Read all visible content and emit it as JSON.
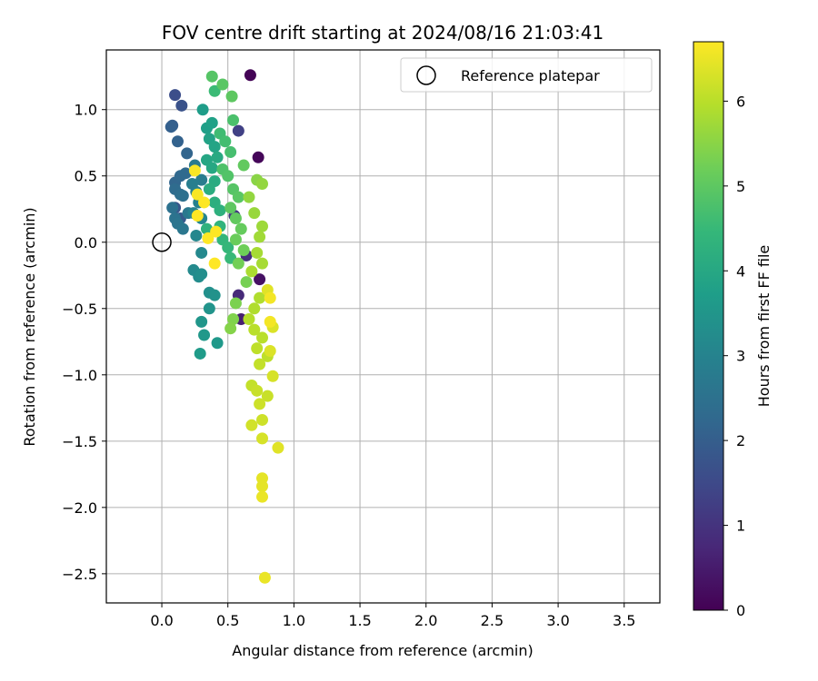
{
  "chart_data": {
    "type": "scatter",
    "title": "FOV centre drift starting at 2024/08/16 21:03:41",
    "xlabel": "Angular distance from reference (arcmin)",
    "ylabel": "Rotation from reference (arcmin)",
    "xlim": [
      -0.42,
      3.77
    ],
    "ylim": [
      -2.72,
      1.45
    ],
    "xticks": [
      0.0,
      0.5,
      1.0,
      1.5,
      2.0,
      2.5,
      3.0,
      3.5
    ],
    "xtick_labels": [
      "0.0",
      "0.5",
      "1.0",
      "1.5",
      "2.0",
      "2.5",
      "3.0",
      "3.5"
    ],
    "yticks": [
      1.0,
      0.5,
      0.0,
      -0.5,
      -1.0,
      -1.5,
      -2.0,
      -2.5
    ],
    "ytick_labels": [
      "1.0",
      "0.5",
      "0.0",
      "−0.5",
      "−1.0",
      "−1.5",
      "−2.0",
      "−2.5"
    ],
    "grid": true,
    "legend_position": "top-right",
    "legend": [
      {
        "label": "Reference platepar",
        "marker": "open-circle"
      }
    ],
    "reference_point": {
      "x": 0.0,
      "y": 0.0
    },
    "colorbar": {
      "label": "Hours from first FF file",
      "colormap": "viridis",
      "range": [
        0,
        6.7
      ],
      "ticks": [
        0,
        1,
        2,
        3,
        4,
        5,
        6
      ],
      "tick_labels": [
        "0",
        "1",
        "2",
        "3",
        "4",
        "5",
        "6"
      ]
    },
    "colormap_stops": [
      "#440154",
      "#482878",
      "#3e4989",
      "#31688e",
      "#26828e",
      "#1f9e89",
      "#35b779",
      "#6ece58",
      "#b5de2b",
      "#fde725"
    ],
    "points": [
      {
        "x": 0.67,
        "y": 1.26,
        "t": 0.05
      },
      {
        "x": 0.73,
        "y": 0.64,
        "t": 0.1
      },
      {
        "x": 0.74,
        "y": -0.28,
        "t": 0.3
      },
      {
        "x": 0.6,
        "y": -0.58,
        "t": 0.6
      },
      {
        "x": 0.58,
        "y": -0.4,
        "t": 0.8
      },
      {
        "x": 0.64,
        "y": -0.1,
        "t": 0.9
      },
      {
        "x": 0.55,
        "y": 0.2,
        "t": 1.1
      },
      {
        "x": 0.58,
        "y": 0.84,
        "t": 1.3
      },
      {
        "x": 0.1,
        "y": 1.11,
        "t": 1.6
      },
      {
        "x": 0.15,
        "y": 1.03,
        "t": 1.7
      },
      {
        "x": 0.1,
        "y": 0.26,
        "t": 1.8
      },
      {
        "x": 0.14,
        "y": 0.18,
        "t": 1.9
      },
      {
        "x": 0.08,
        "y": 0.88,
        "t": 2.0
      },
      {
        "x": 0.07,
        "y": 0.87,
        "t": 2.05
      },
      {
        "x": 0.12,
        "y": 0.76,
        "t": 2.1
      },
      {
        "x": 0.19,
        "y": 0.67,
        "t": 2.15
      },
      {
        "x": 0.1,
        "y": 0.45,
        "t": 2.2
      },
      {
        "x": 0.14,
        "y": 0.5,
        "t": 2.25
      },
      {
        "x": 0.18,
        "y": 0.52,
        "t": 2.3
      },
      {
        "x": 0.1,
        "y": 0.4,
        "t": 2.35
      },
      {
        "x": 0.14,
        "y": 0.36,
        "t": 2.4
      },
      {
        "x": 0.16,
        "y": 0.35,
        "t": 2.45
      },
      {
        "x": 0.08,
        "y": 0.26,
        "t": 2.5
      },
      {
        "x": 0.1,
        "y": 0.18,
        "t": 2.55
      },
      {
        "x": 0.12,
        "y": 0.14,
        "t": 2.6
      },
      {
        "x": 0.16,
        "y": 0.1,
        "t": 2.65
      },
      {
        "x": 0.2,
        "y": 0.22,
        "t": 2.7
      },
      {
        "x": 0.25,
        "y": 0.58,
        "t": 2.75
      },
      {
        "x": 0.3,
        "y": 0.47,
        "t": 2.8
      },
      {
        "x": 0.23,
        "y": 0.44,
        "t": 2.85
      },
      {
        "x": 0.26,
        "y": 0.38,
        "t": 2.9
      },
      {
        "x": 0.28,
        "y": 0.3,
        "t": 2.95
      },
      {
        "x": 0.24,
        "y": 0.22,
        "t": 3.0
      },
      {
        "x": 0.3,
        "y": 0.18,
        "t": 3.05
      },
      {
        "x": 0.26,
        "y": 0.05,
        "t": 3.1
      },
      {
        "x": 0.3,
        "y": -0.08,
        "t": 3.15
      },
      {
        "x": 0.24,
        "y": -0.21,
        "t": 3.2
      },
      {
        "x": 0.28,
        "y": -0.26,
        "t": 3.25
      },
      {
        "x": 0.3,
        "y": -0.24,
        "t": 3.3
      },
      {
        "x": 0.36,
        "y": -0.38,
        "t": 3.35
      },
      {
        "x": 0.4,
        "y": -0.4,
        "t": 3.4
      },
      {
        "x": 0.36,
        "y": -0.5,
        "t": 3.45
      },
      {
        "x": 0.3,
        "y": -0.6,
        "t": 3.5
      },
      {
        "x": 0.32,
        "y": -0.7,
        "t": 3.55
      },
      {
        "x": 0.42,
        "y": -0.76,
        "t": 3.6
      },
      {
        "x": 0.29,
        "y": -0.84,
        "t": 3.65
      },
      {
        "x": 0.31,
        "y": 1.0,
        "t": 3.7
      },
      {
        "x": 0.34,
        "y": 0.86,
        "t": 3.75
      },
      {
        "x": 0.38,
        "y": 0.9,
        "t": 3.8
      },
      {
        "x": 0.36,
        "y": 0.78,
        "t": 3.85
      },
      {
        "x": 0.4,
        "y": 0.72,
        "t": 3.9
      },
      {
        "x": 0.34,
        "y": 0.62,
        "t": 3.95
      },
      {
        "x": 0.38,
        "y": 0.56,
        "t": 4.0
      },
      {
        "x": 0.42,
        "y": 0.64,
        "t": 4.05
      },
      {
        "x": 0.4,
        "y": 0.46,
        "t": 4.1
      },
      {
        "x": 0.36,
        "y": 0.4,
        "t": 4.15
      },
      {
        "x": 0.4,
        "y": 0.3,
        "t": 4.2
      },
      {
        "x": 0.44,
        "y": 0.24,
        "t": 4.25
      },
      {
        "x": 0.34,
        "y": 0.1,
        "t": 4.3
      },
      {
        "x": 0.44,
        "y": 0.12,
        "t": 4.35
      },
      {
        "x": 0.46,
        "y": 0.02,
        "t": 4.4
      },
      {
        "x": 0.5,
        "y": -0.04,
        "t": 4.45
      },
      {
        "x": 0.52,
        "y": -0.12,
        "t": 4.5
      },
      {
        "x": 0.4,
        "y": 1.14,
        "t": 4.55
      },
      {
        "x": 0.44,
        "y": 0.82,
        "t": 4.6
      },
      {
        "x": 0.48,
        "y": 0.76,
        "t": 4.65
      },
      {
        "x": 0.52,
        "y": 0.68,
        "t": 4.7
      },
      {
        "x": 0.54,
        "y": 0.92,
        "t": 4.75
      },
      {
        "x": 0.46,
        "y": 0.55,
        "t": 4.8
      },
      {
        "x": 0.5,
        "y": 0.5,
        "t": 4.85
      },
      {
        "x": 0.54,
        "y": 0.4,
        "t": 4.9
      },
      {
        "x": 0.58,
        "y": 0.34,
        "t": 4.95
      },
      {
        "x": 0.52,
        "y": 0.26,
        "t": 5.0
      },
      {
        "x": 0.56,
        "y": 0.18,
        "t": 5.05
      },
      {
        "x": 0.6,
        "y": 0.1,
        "t": 5.1
      },
      {
        "x": 0.56,
        "y": 0.02,
        "t": 5.15
      },
      {
        "x": 0.62,
        "y": -0.06,
        "t": 5.2
      },
      {
        "x": 0.58,
        "y": -0.16,
        "t": 5.25
      },
      {
        "x": 0.64,
        "y": -0.3,
        "t": 5.3
      },
      {
        "x": 0.56,
        "y": -0.46,
        "t": 5.35
      },
      {
        "x": 0.54,
        "y": -0.58,
        "t": 5.4
      },
      {
        "x": 0.52,
        "y": -0.65,
        "t": 5.45
      },
      {
        "x": 0.38,
        "y": 1.25,
        "t": 4.9
      },
      {
        "x": 0.46,
        "y": 1.19,
        "t": 4.95
      },
      {
        "x": 0.53,
        "y": 1.1,
        "t": 5.0
      },
      {
        "x": 0.62,
        "y": 0.58,
        "t": 5.05
      },
      {
        "x": 0.72,
        "y": 0.47,
        "t": 5.5
      },
      {
        "x": 0.76,
        "y": 0.44,
        "t": 5.6
      },
      {
        "x": 0.66,
        "y": 0.34,
        "t": 5.6
      },
      {
        "x": 0.7,
        "y": 0.22,
        "t": 5.65
      },
      {
        "x": 0.76,
        "y": 0.12,
        "t": 5.7
      },
      {
        "x": 0.74,
        "y": 0.04,
        "t": 5.75
      },
      {
        "x": 0.72,
        "y": -0.08,
        "t": 5.8
      },
      {
        "x": 0.76,
        "y": -0.16,
        "t": 5.8
      },
      {
        "x": 0.68,
        "y": -0.22,
        "t": 5.85
      },
      {
        "x": 0.74,
        "y": -0.42,
        "t": 5.9
      },
      {
        "x": 0.7,
        "y": -0.5,
        "t": 5.9
      },
      {
        "x": 0.66,
        "y": -0.58,
        "t": 5.95
      },
      {
        "x": 0.7,
        "y": -0.66,
        "t": 6.0
      },
      {
        "x": 0.76,
        "y": -0.72,
        "t": 6.0
      },
      {
        "x": 0.72,
        "y": -0.8,
        "t": 6.05
      },
      {
        "x": 0.8,
        "y": -0.86,
        "t": 6.05
      },
      {
        "x": 0.74,
        "y": -0.92,
        "t": 6.1
      },
      {
        "x": 0.68,
        "y": -1.08,
        "t": 6.1
      },
      {
        "x": 0.72,
        "y": -1.12,
        "t": 6.15
      },
      {
        "x": 0.8,
        "y": -1.16,
        "t": 6.15
      },
      {
        "x": 0.74,
        "y": -1.22,
        "t": 6.2
      },
      {
        "x": 0.76,
        "y": -1.34,
        "t": 6.2
      },
      {
        "x": 0.68,
        "y": -1.38,
        "t": 6.25
      },
      {
        "x": 0.76,
        "y": -1.48,
        "t": 6.3
      },
      {
        "x": 0.84,
        "y": -1.01,
        "t": 6.3
      },
      {
        "x": 0.82,
        "y": -0.82,
        "t": 6.35
      },
      {
        "x": 0.84,
        "y": -0.64,
        "t": 6.35
      },
      {
        "x": 0.8,
        "y": -0.36,
        "t": 6.4
      },
      {
        "x": 0.88,
        "y": -1.55,
        "t": 6.4
      },
      {
        "x": 0.76,
        "y": -1.78,
        "t": 6.45
      },
      {
        "x": 0.76,
        "y": -1.84,
        "t": 6.45
      },
      {
        "x": 0.76,
        "y": -1.92,
        "t": 6.5
      },
      {
        "x": 0.78,
        "y": -2.53,
        "t": 6.5
      },
      {
        "x": 0.82,
        "y": -0.6,
        "t": 6.6
      },
      {
        "x": 0.82,
        "y": -0.42,
        "t": 6.6
      },
      {
        "x": 0.25,
        "y": 0.54,
        "t": 6.65
      },
      {
        "x": 0.27,
        "y": 0.36,
        "t": 6.65
      },
      {
        "x": 0.32,
        "y": 0.3,
        "t": 6.7
      },
      {
        "x": 0.27,
        "y": 0.2,
        "t": 6.7
      },
      {
        "x": 0.41,
        "y": 0.08,
        "t": 6.7
      },
      {
        "x": 0.35,
        "y": 0.03,
        "t": 6.7
      },
      {
        "x": 0.4,
        "y": -0.16,
        "t": 6.7
      }
    ]
  }
}
